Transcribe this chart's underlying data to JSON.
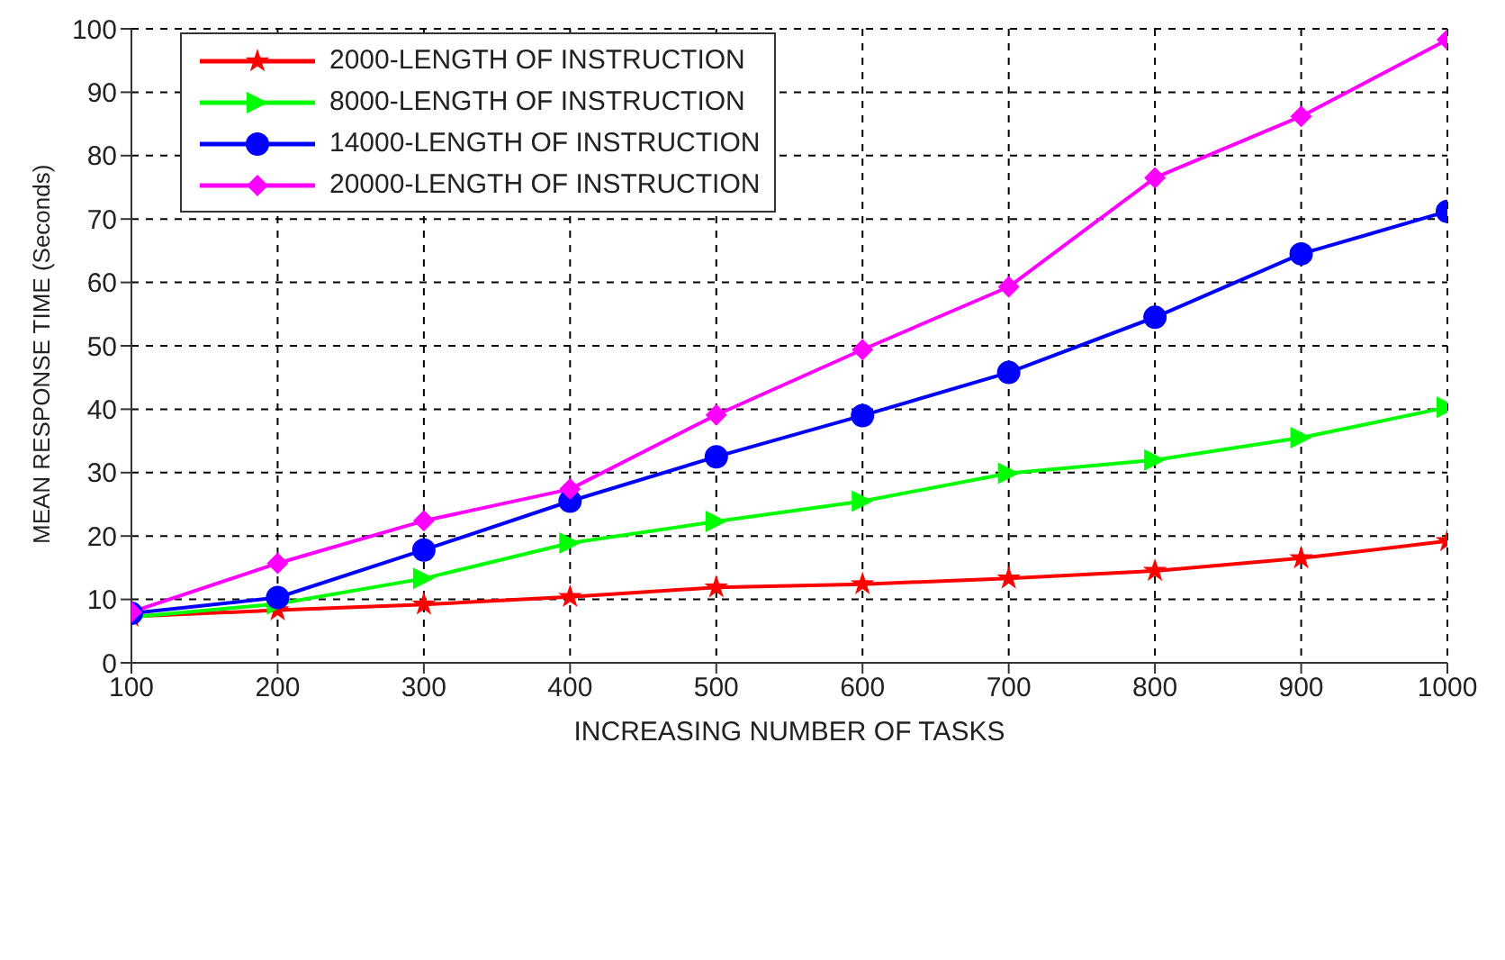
{
  "chart_data": {
    "type": "line",
    "xlabel": "INCREASING NUMBER OF TASKS",
    "ylabel": "MEAN RESPONSE TIME (Seconds)",
    "x": [
      100,
      200,
      300,
      400,
      500,
      600,
      700,
      800,
      900,
      1000
    ],
    "xlim": [
      100,
      1000
    ],
    "xticks": [
      100,
      200,
      300,
      400,
      500,
      600,
      700,
      800,
      900,
      1000
    ],
    "ylim": [
      0,
      100
    ],
    "yticks": [
      0,
      10,
      20,
      30,
      40,
      50,
      60,
      70,
      80,
      90,
      100
    ],
    "grid": true,
    "legend": "top left",
    "line_style": "solid",
    "series": [
      {
        "name": "2000-LENGTH OF INSTRUCTION",
        "color": "#ff0000",
        "marker": "star",
        "values": [
          7.3,
          8.3,
          9.2,
          10.4,
          11.9,
          12.4,
          13.3,
          14.5,
          16.5,
          19.2
        ]
      },
      {
        "name": "8000-LENGTH OF INSTRUCTION",
        "color": "#00ff00",
        "marker": "triangle",
        "values": [
          7.2,
          9.3,
          13.3,
          18.9,
          22.3,
          25.5,
          29.9,
          32,
          35.5,
          40.3
        ]
      },
      {
        "name": "14000-LENGTH OF INSTRUCTION",
        "color": "#0000ff",
        "marker": "circle",
        "values": [
          7.8,
          10.3,
          17.8,
          25.5,
          32.5,
          39,
          45.8,
          54.5,
          64.5,
          71.2
        ]
      },
      {
        "name": "20000-LENGTH OF INSTRUCTION",
        "color": "#ff00ff",
        "marker": "diamond",
        "values": [
          8,
          15.7,
          22.4,
          27.4,
          39.1,
          49.4,
          59.3,
          76.5,
          86.2,
          98.3
        ]
      }
    ]
  }
}
